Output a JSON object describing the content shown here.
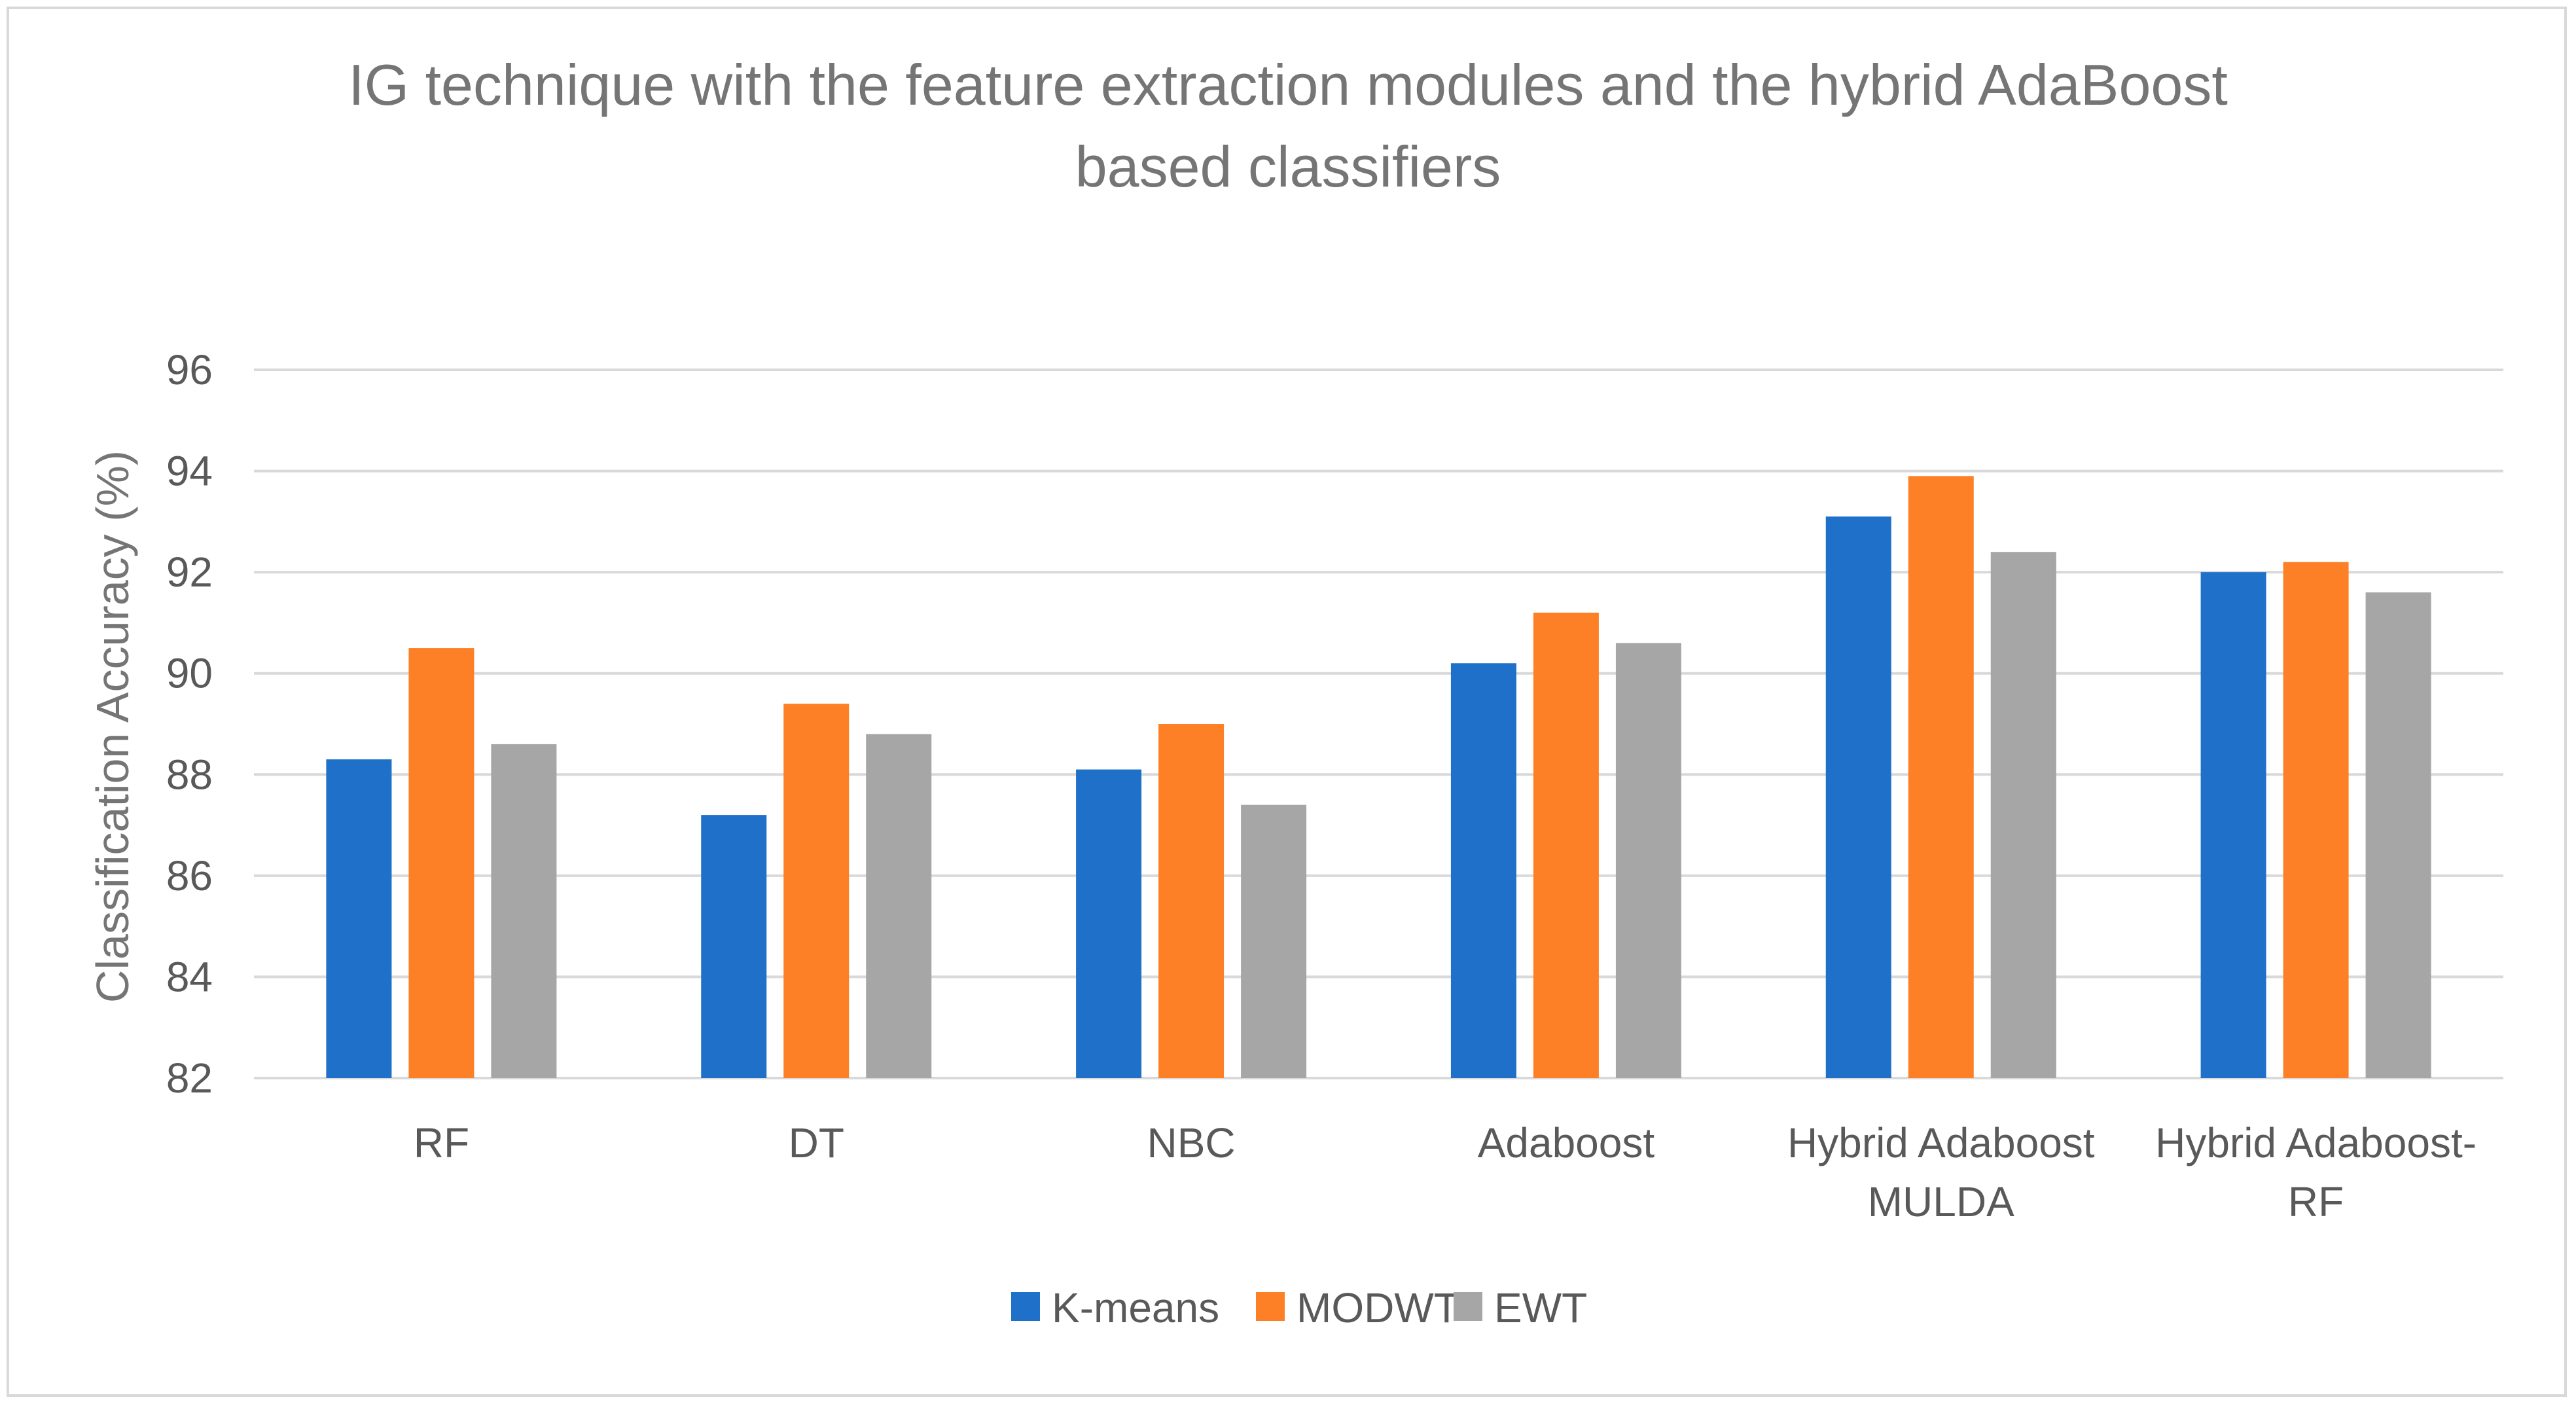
{
  "chart_data": {
    "type": "bar",
    "title": "IG technique with the feature extraction modules and the hybrid AdaBoost based classifiers",
    "title_lines": [
      "IG technique with the feature extraction modules and the hybrid AdaBoost",
      "based classifiers"
    ],
    "xlabel": "",
    "ylabel": "Classification Accuracy (%)",
    "ylim": [
      82,
      96
    ],
    "yticks": [
      82,
      84,
      86,
      88,
      90,
      92,
      94,
      96
    ],
    "grid": true,
    "legend_position": "bottom",
    "categories": [
      "RF",
      "DT",
      "NBC",
      "Adaboost",
      "Hybrid Adaboost MULDA",
      "Hybrid Adaboost-RF"
    ],
    "category_lines": [
      [
        "RF"
      ],
      [
        "DT"
      ],
      [
        "NBC"
      ],
      [
        "Adaboost"
      ],
      [
        "Hybrid Adaboost",
        "MULDA"
      ],
      [
        "Hybrid Adaboost-",
        "RF"
      ]
    ],
    "series": [
      {
        "name": "K-means",
        "color": "#1f70c8",
        "values": [
          88.3,
          87.2,
          88.1,
          90.2,
          93.1,
          92.0
        ]
      },
      {
        "name": "MODWT",
        "color": "#fd8027",
        "values": [
          90.5,
          89.4,
          89.0,
          91.2,
          93.9,
          92.2
        ]
      },
      {
        "name": "EWT",
        "color": "#a6a6a6",
        "values": [
          88.6,
          88.8,
          87.4,
          90.6,
          92.4,
          91.6
        ]
      }
    ]
  }
}
